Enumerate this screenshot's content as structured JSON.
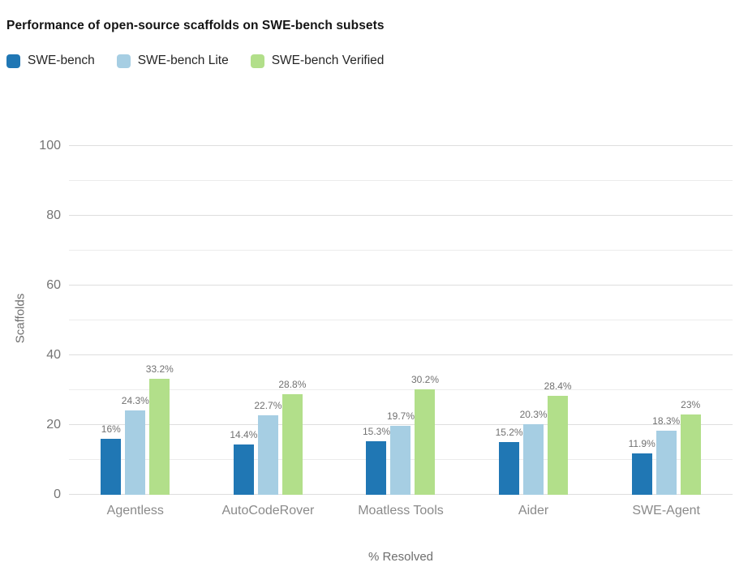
{
  "chart_data": {
    "type": "bar",
    "title": "Performance of open-source scaffolds on SWE-bench subsets",
    "xlabel": "% Resolved",
    "ylabel": "Scaffolds",
    "categories": [
      "Agentless",
      "AutoCodeRover",
      "Moatless Tools",
      "Aider",
      "SWE-Agent"
    ],
    "series": [
      {
        "name": "SWE-bench",
        "color": "#2077B4",
        "values": [
          16,
          14.4,
          15.3,
          15.2,
          11.9
        ],
        "value_labels": [
          "16%",
          "14.4%",
          "15.3%",
          "15.2%",
          "11.9%"
        ]
      },
      {
        "name": "SWE-bench Lite",
        "color": "#A6CEE3",
        "values": [
          24.3,
          22.7,
          19.7,
          20.3,
          18.3
        ],
        "value_labels": [
          "24.3%",
          "22.7%",
          "19.7%",
          "20.3%",
          "18.3%"
        ]
      },
      {
        "name": "SWE-bench Verified",
        "color": "#B2DF8A",
        "values": [
          33.2,
          28.8,
          30.2,
          28.4,
          23
        ],
        "value_labels": [
          "33.2%",
          "28.8%",
          "30.2%",
          "28.4%",
          "23%"
        ]
      }
    ],
    "ylim": [
      0,
      100
    ],
    "yticks": [
      0,
      20,
      40,
      60,
      80,
      100
    ],
    "minor_gridlines": [
      10,
      30,
      50,
      70,
      90
    ],
    "grid": true,
    "legend_position": "top-left"
  },
  "style": {
    "background": "#ffffff",
    "title_color": "#141414",
    "legend_text_color": "#262626",
    "tick_label_color": "#757575",
    "category_label_color": "#8a8a8a",
    "value_label_color": "#717171",
    "axis_title_color": "#6e6e6e",
    "major_grid_color": "#dedede",
    "minor_grid_color": "#ececec"
  }
}
